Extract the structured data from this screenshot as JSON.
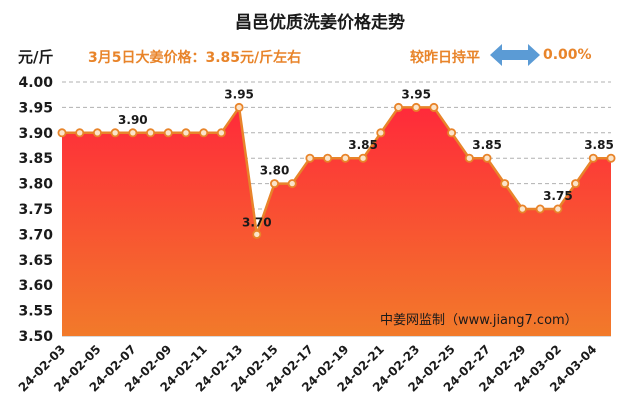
{
  "header": {
    "title": "昌邑优质洗姜价格走势",
    "unit": "元/斤",
    "price_note": "3月5日大姜价格：3.85元/斤左右",
    "change_label": "较昨日持平",
    "change_value": "0.00%"
  },
  "watermark": "中姜网监制（www.jiang7.com）",
  "colors": {
    "line": "#e8842a",
    "fill_top": "#ff2a3a",
    "fill_bottom": "#f27a2a",
    "arrow": "#5b9bd5",
    "grid": "#b0b0b0"
  },
  "chart_data": {
    "type": "area",
    "title": "昌邑优质洗姜价格走势",
    "ylabel": "元/斤",
    "ylim": [
      3.5,
      4.0
    ],
    "yticks": [
      "3.50",
      "3.55",
      "3.60",
      "3.65",
      "3.70",
      "3.75",
      "3.80",
      "3.85",
      "3.90",
      "3.95",
      "4.00"
    ],
    "grid": true,
    "x": [
      "24-02-03",
      "24-02-04",
      "24-02-05",
      "24-02-06",
      "24-02-07",
      "24-02-08",
      "24-02-09",
      "24-02-10",
      "24-02-11",
      "24-02-12",
      "24-02-13",
      "24-02-14",
      "24-02-15",
      "24-02-16",
      "24-02-17",
      "24-02-18",
      "24-02-19",
      "24-02-20",
      "24-02-21",
      "24-02-22",
      "24-02-23",
      "24-02-24",
      "24-02-25",
      "24-02-26",
      "24-02-27",
      "24-02-28",
      "24-02-29",
      "24-03-01",
      "24-03-02",
      "24-03-03",
      "24-03-04",
      "24-03-05"
    ],
    "xtick_labels": [
      "24-02-03",
      "24-02-05",
      "24-02-07",
      "24-02-09",
      "24-02-11",
      "24-02-13",
      "24-02-15",
      "24-02-17",
      "24-02-19",
      "24-02-21",
      "24-02-23",
      "24-02-25",
      "24-02-27",
      "24-02-29",
      "24-03-02",
      "24-03-04"
    ],
    "values": [
      3.9,
      3.9,
      3.9,
      3.9,
      3.9,
      3.9,
      3.9,
      3.9,
      3.9,
      3.9,
      3.95,
      3.7,
      3.8,
      3.8,
      3.85,
      3.85,
      3.85,
      3.85,
      3.9,
      3.95,
      3.95,
      3.95,
      3.9,
      3.85,
      3.85,
      3.8,
      3.75,
      3.75,
      3.75,
      3.8,
      3.85,
      3.85
    ],
    "data_labels": [
      {
        "index": 4,
        "text": "3.90"
      },
      {
        "index": 10,
        "text": "3.95"
      },
      {
        "index": 11,
        "text": "3.70"
      },
      {
        "index": 12,
        "text": "3.80"
      },
      {
        "index": 17,
        "text": "3.85"
      },
      {
        "index": 20,
        "text": "3.95"
      },
      {
        "index": 24,
        "text": "3.85"
      },
      {
        "index": 28,
        "text": "3.75"
      },
      {
        "index": 31,
        "text": "3.85"
      }
    ]
  }
}
